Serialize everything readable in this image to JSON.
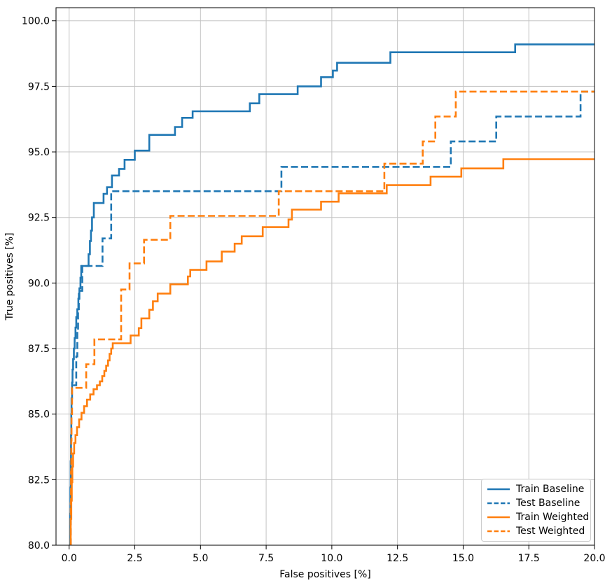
{
  "chart_data": {
    "type": "line",
    "subtype": "roc-step-curves",
    "title": "",
    "xlabel": "False positives [%]",
    "ylabel": "True positives [%]",
    "xlim": [
      -0.5,
      20
    ],
    "ylim": [
      80,
      100.5
    ],
    "x_ticks": [
      0.0,
      2.5,
      5.0,
      7.5,
      10.0,
      12.5,
      15.0,
      17.5,
      20.0
    ],
    "y_ticks": [
      80.0,
      82.5,
      85.0,
      87.5,
      90.0,
      92.5,
      95.0,
      97.5,
      100.0
    ],
    "grid": true,
    "grid_color": "#c3c3c3",
    "axis_color": "#000000",
    "legend_position": "lower right",
    "step_mode": "post",
    "series": [
      {
        "name": "Train Baseline",
        "color": "#1f77b4",
        "dash": "solid",
        "points": [
          [
            0.03,
            80
          ],
          [
            0.04,
            81.2
          ],
          [
            0.05,
            82.2
          ],
          [
            0.06,
            83.2
          ],
          [
            0.07,
            84.2
          ],
          [
            0.08,
            85.0
          ],
          [
            0.09,
            85.6
          ],
          [
            0.11,
            86.2
          ],
          [
            0.13,
            86.7
          ],
          [
            0.15,
            87.1
          ],
          [
            0.18,
            87.5
          ],
          [
            0.21,
            87.9
          ],
          [
            0.24,
            88.3
          ],
          [
            0.27,
            88.7
          ],
          [
            0.31,
            89.0
          ],
          [
            0.35,
            89.4
          ],
          [
            0.39,
            89.8
          ],
          [
            0.43,
            90.2
          ],
          [
            0.46,
            90.65
          ],
          [
            0.74,
            91.1
          ],
          [
            0.79,
            91.6
          ],
          [
            0.83,
            92.0
          ],
          [
            0.87,
            92.5
          ],
          [
            0.94,
            93.05
          ],
          [
            1.31,
            93.4
          ],
          [
            1.44,
            93.65
          ],
          [
            1.63,
            94.1
          ],
          [
            1.9,
            94.35
          ],
          [
            2.11,
            94.7
          ],
          [
            2.5,
            95.05
          ],
          [
            3.05,
            95.65
          ],
          [
            4.03,
            95.95
          ],
          [
            4.3,
            96.3
          ],
          [
            4.7,
            96.55
          ],
          [
            6.88,
            96.85
          ],
          [
            7.24,
            97.2
          ],
          [
            8.7,
            97.5
          ],
          [
            9.59,
            97.85
          ],
          [
            10.04,
            98.1
          ],
          [
            10.2,
            98.4
          ],
          [
            12.23,
            98.8
          ],
          [
            16.98,
            99.1
          ]
        ]
      },
      {
        "name": "Test Baseline",
        "color": "#1f77b4",
        "dash": "dashed",
        "points": [
          [
            0.05,
            80
          ],
          [
            0.06,
            82.0
          ],
          [
            0.07,
            83.5
          ],
          [
            0.08,
            85.0
          ],
          [
            0.1,
            86.1
          ],
          [
            0.27,
            87.2
          ],
          [
            0.31,
            88.2
          ],
          [
            0.34,
            89.0
          ],
          [
            0.37,
            89.7
          ],
          [
            0.5,
            90.65
          ],
          [
            1.27,
            91.7
          ],
          [
            1.6,
            93.5
          ],
          [
            8.08,
            94.43
          ],
          [
            14.53,
            95.4
          ],
          [
            16.26,
            96.35
          ],
          [
            19.47,
            97.3
          ]
        ]
      },
      {
        "name": "Train Weighted",
        "color": "#ff7f0e",
        "dash": "solid",
        "points": [
          [
            0.05,
            80
          ],
          [
            0.06,
            81.0
          ],
          [
            0.08,
            81.7
          ],
          [
            0.1,
            82.4
          ],
          [
            0.12,
            83.0
          ],
          [
            0.15,
            83.5
          ],
          [
            0.19,
            83.9
          ],
          [
            0.24,
            84.2
          ],
          [
            0.3,
            84.5
          ],
          [
            0.38,
            84.8
          ],
          [
            0.47,
            85.05
          ],
          [
            0.57,
            85.3
          ],
          [
            0.68,
            85.55
          ],
          [
            0.8,
            85.75
          ],
          [
            0.93,
            85.95
          ],
          [
            1.06,
            86.1
          ],
          [
            1.17,
            86.25
          ],
          [
            1.26,
            86.45
          ],
          [
            1.34,
            86.65
          ],
          [
            1.41,
            86.85
          ],
          [
            1.48,
            87.05
          ],
          [
            1.54,
            87.3
          ],
          [
            1.6,
            87.5
          ],
          [
            1.66,
            87.7
          ],
          [
            2.34,
            88.0
          ],
          [
            2.65,
            88.28
          ],
          [
            2.75,
            88.65
          ],
          [
            3.05,
            88.98
          ],
          [
            3.19,
            89.3
          ],
          [
            3.37,
            89.6
          ],
          [
            3.85,
            89.95
          ],
          [
            4.52,
            90.25
          ],
          [
            4.61,
            90.5
          ],
          [
            5.23,
            90.82
          ],
          [
            5.81,
            91.2
          ],
          [
            6.3,
            91.5
          ],
          [
            6.57,
            91.78
          ],
          [
            7.37,
            92.13
          ],
          [
            8.35,
            92.42
          ],
          [
            8.48,
            92.8
          ],
          [
            9.59,
            93.1
          ],
          [
            10.26,
            93.42
          ],
          [
            12.09,
            93.73
          ],
          [
            13.76,
            94.06
          ],
          [
            14.93,
            94.37
          ],
          [
            16.53,
            94.72
          ]
        ]
      },
      {
        "name": "Test Weighted",
        "color": "#ff7f0e",
        "dash": "dashed",
        "points": [
          [
            0.05,
            80
          ],
          [
            0.06,
            81.6
          ],
          [
            0.07,
            82.8
          ],
          [
            0.08,
            84.0
          ],
          [
            0.09,
            85.0
          ],
          [
            0.11,
            86.0
          ],
          [
            0.65,
            86.9
          ],
          [
            0.96,
            87.85
          ],
          [
            1.98,
            89.75
          ],
          [
            2.3,
            90.75
          ],
          [
            2.85,
            91.65
          ],
          [
            3.85,
            92.56
          ],
          [
            7.98,
            93.5
          ],
          [
            12.0,
            94.55
          ],
          [
            13.46,
            95.4
          ],
          [
            13.94,
            96.35
          ],
          [
            14.72,
            97.3
          ]
        ]
      }
    ]
  }
}
